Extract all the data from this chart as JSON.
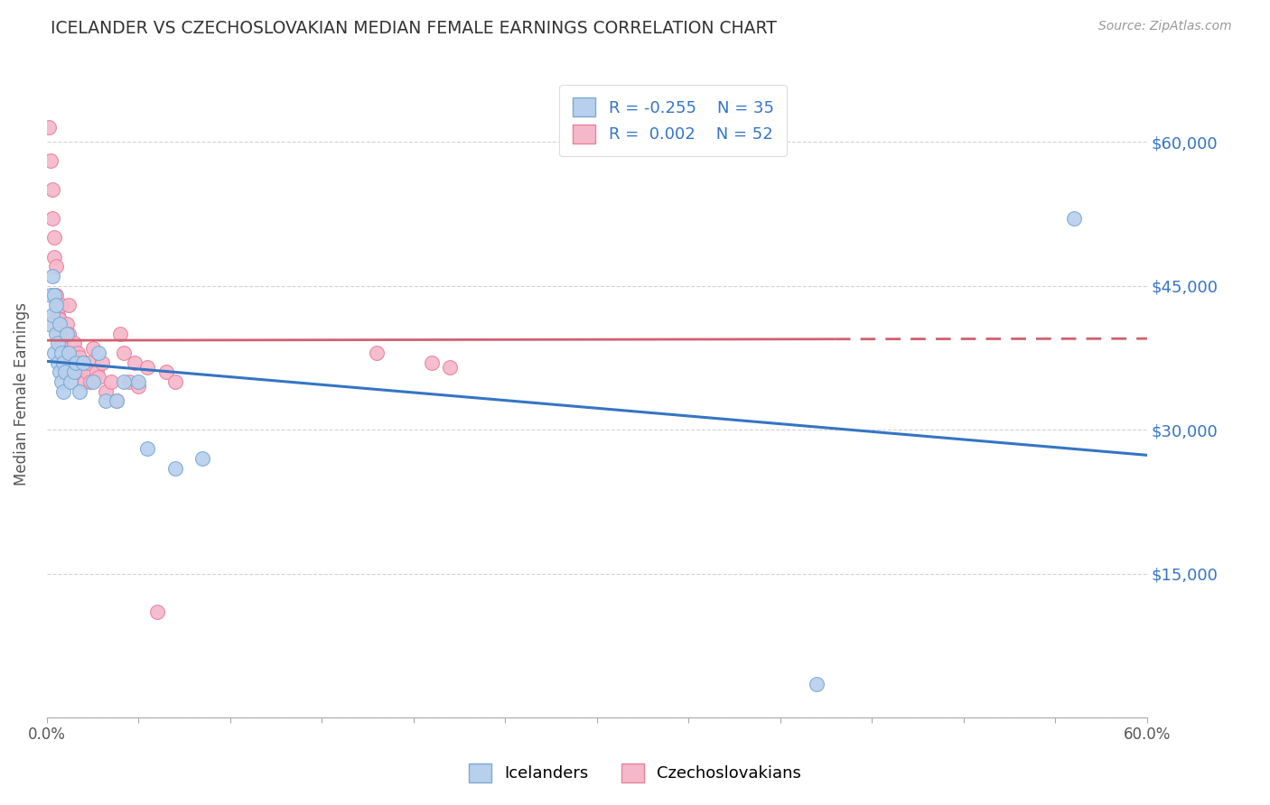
{
  "title": "ICELANDER VS CZECHOSLOVAKIAN MEDIAN FEMALE EARNINGS CORRELATION CHART",
  "source": "Source: ZipAtlas.com",
  "ylabel": "Median Female Earnings",
  "xlim": [
    0.0,
    0.6
  ],
  "ylim": [
    0,
    67500
  ],
  "yticks": [
    0,
    15000,
    30000,
    45000,
    60000
  ],
  "background_color": "#ffffff",
  "grid_color": "#c8c8c8",
  "icelanders_color": "#b8d0ed",
  "czechoslovakians_color": "#f5b8cb",
  "icelanders_edge": "#7aaad4",
  "czechoslovakians_edge": "#e8829a",
  "trend_blue": "#3575c3",
  "trend_pink": "#d06070",
  "legend_R_icelanders": "R = -0.255",
  "legend_N_icelanders": "N = 35",
  "legend_R_czechoslovakians": "R =  0.002",
  "legend_N_czechoslovakians": "N = 52",
  "icelanders_x": [
    0.001,
    0.002,
    0.003,
    0.003,
    0.004,
    0.004,
    0.005,
    0.005,
    0.006,
    0.006,
    0.007,
    0.007,
    0.008,
    0.008,
    0.009,
    0.009,
    0.01,
    0.011,
    0.012,
    0.013,
    0.015,
    0.016,
    0.018,
    0.02,
    0.025,
    0.028,
    0.032,
    0.038,
    0.042,
    0.05,
    0.055,
    0.07,
    0.085,
    0.42,
    0.56
  ],
  "icelanders_y": [
    41000,
    44000,
    46000,
    42000,
    44000,
    38000,
    40000,
    43000,
    37000,
    39000,
    36000,
    41000,
    35000,
    38000,
    37000,
    34000,
    36000,
    40000,
    38000,
    35000,
    36000,
    37000,
    34000,
    37000,
    35000,
    38000,
    33000,
    33000,
    35000,
    35000,
    28000,
    26000,
    27000,
    3500,
    52000
  ],
  "czechoslovakians_x": [
    0.001,
    0.002,
    0.003,
    0.003,
    0.004,
    0.004,
    0.005,
    0.005,
    0.006,
    0.006,
    0.007,
    0.007,
    0.008,
    0.008,
    0.009,
    0.01,
    0.01,
    0.011,
    0.012,
    0.012,
    0.013,
    0.014,
    0.015,
    0.015,
    0.016,
    0.017,
    0.018,
    0.019,
    0.02,
    0.021,
    0.022,
    0.023,
    0.024,
    0.025,
    0.027,
    0.028,
    0.03,
    0.032,
    0.035,
    0.038,
    0.04,
    0.042,
    0.045,
    0.048,
    0.05,
    0.055,
    0.06,
    0.065,
    0.07,
    0.18,
    0.21,
    0.22
  ],
  "czechoslovakians_y": [
    61500,
    58000,
    55000,
    52000,
    50000,
    48000,
    47000,
    44000,
    43000,
    42000,
    41500,
    40000,
    43000,
    39000,
    38500,
    38000,
    37500,
    41000,
    40000,
    43000,
    37000,
    38000,
    39000,
    37000,
    36000,
    38000,
    37500,
    36500,
    37000,
    35000,
    36000,
    37000,
    35000,
    38500,
    36000,
    35500,
    37000,
    34000,
    35000,
    33000,
    40000,
    38000,
    35000,
    37000,
    34500,
    36500,
    11000,
    36000,
    35000,
    38000,
    37000,
    36500
  ]
}
